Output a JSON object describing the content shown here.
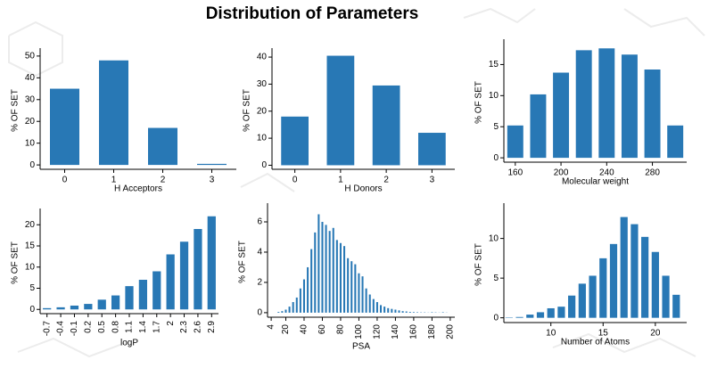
{
  "title": "Distribution of Parameters",
  "chart_data": [
    {
      "type": "bar",
      "x_label": "H Acceptors",
      "y_label": "% OF SET",
      "color": "#2878b5",
      "categories": [
        "0",
        "1",
        "2",
        "3"
      ],
      "values": [
        35,
        48,
        17,
        0.5
      ],
      "ylim": [
        -2,
        52
      ],
      "yticks": [
        0,
        10,
        20,
        30,
        40,
        50
      ]
    },
    {
      "type": "bar",
      "x_label": "H Donors",
      "y_label": "% OF SET",
      "color": "#2878b5",
      "categories": [
        "0",
        "1",
        "2",
        "3"
      ],
      "values": [
        18,
        40.5,
        29.5,
        12
      ],
      "ylim": [
        -1.5,
        42
      ],
      "yticks": [
        0,
        10,
        20,
        30,
        40
      ]
    },
    {
      "type": "bar",
      "x_label": "Molecular weight",
      "y_label": "% OF SET",
      "color": "#2878b5",
      "x": [
        160,
        180,
        200,
        220,
        240,
        260,
        280,
        300
      ],
      "values": [
        5.2,
        10.2,
        13.7,
        17.3,
        17.6,
        16.6,
        14.2,
        5.2
      ],
      "xlim": [
        150,
        310
      ],
      "xticks": [
        160,
        200,
        240,
        280
      ],
      "ylim": [
        -0.7,
        18.5
      ],
      "yticks": [
        0,
        5,
        10,
        15
      ]
    },
    {
      "type": "bar",
      "x_label": "logP",
      "y_label": "% OF SET",
      "color": "#2878b5",
      "xtick_rotation": 90,
      "categories": [
        "-0.7",
        "-0.4",
        "-0.1",
        "0.2",
        "0.5",
        "0.8",
        "1.1",
        "1.4",
        "1.7",
        "2",
        "2.3",
        "2.6",
        "2.9"
      ],
      "values": [
        0.3,
        0.5,
        0.9,
        1.3,
        2.3,
        3.3,
        5.5,
        7,
        9,
        13,
        16,
        19,
        22
      ],
      "ylim": [
        -1,
        23
      ],
      "yticks": [
        0,
        5,
        10,
        15,
        20
      ]
    },
    {
      "type": "bar",
      "x_label": "PSA",
      "y_label": "% OF SET",
      "color": "#2878b5",
      "xtick_rotation": 90,
      "x": [
        12,
        16,
        20,
        24,
        28,
        32,
        36,
        40,
        44,
        48,
        52,
        56,
        60,
        64,
        68,
        72,
        76,
        80,
        84,
        88,
        92,
        96,
        100,
        104,
        108,
        112,
        116,
        120,
        124,
        128,
        132,
        136,
        140,
        144,
        148,
        152,
        156,
        160,
        164,
        168,
        172,
        176,
        180,
        184,
        188,
        192,
        196
      ],
      "values": [
        0.05,
        0.1,
        0.2,
        0.4,
        0.7,
        1.0,
        1.6,
        2.2,
        3.0,
        4.2,
        5.3,
        6.5,
        6.0,
        5.8,
        5.4,
        5.6,
        4.8,
        4.6,
        4.4,
        3.6,
        3.4,
        3.2,
        2.6,
        2.4,
        1.6,
        1.2,
        0.9,
        0.7,
        0.5,
        0.4,
        0.3,
        0.25,
        0.2,
        0.15,
        0.1,
        0.08,
        0.05,
        0.04,
        0.03,
        0.02,
        0.02,
        0.01,
        0.03,
        0.02,
        0.01,
        0.03,
        0.01
      ],
      "xlim": [
        0,
        205
      ],
      "xticks": [
        4,
        20,
        40,
        60,
        80,
        100,
        120,
        140,
        160,
        180,
        200
      ],
      "ylim": [
        -0.3,
        7
      ],
      "yticks": [
        0,
        2,
        4,
        6
      ]
    },
    {
      "type": "bar",
      "x_label": "Number of Atoms",
      "y_label": "% OF SET",
      "color": "#2878b5",
      "x": [
        6,
        7,
        8,
        9,
        10,
        11,
        12,
        13,
        14,
        15,
        16,
        17,
        18,
        19,
        20,
        21,
        22
      ],
      "values": [
        0.05,
        0.1,
        0.4,
        0.7,
        1.2,
        1.4,
        2.8,
        4.3,
        5.3,
        7.5,
        9.3,
        12.7,
        11.8,
        10.2,
        8.3,
        5.3,
        2.9
      ],
      "xlim": [
        5.5,
        23
      ],
      "xticks": [
        10,
        15,
        20
      ],
      "ylim": [
        -0.6,
        14
      ],
      "yticks": [
        0,
        5,
        10
      ]
    }
  ]
}
